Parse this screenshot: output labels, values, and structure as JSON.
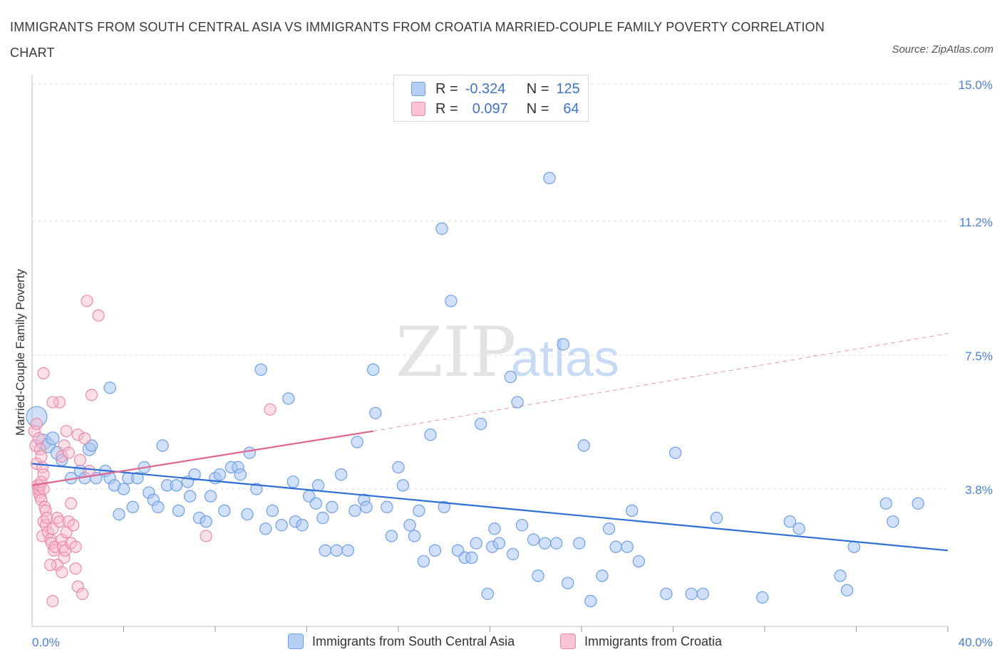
{
  "title": "IMMIGRANTS FROM SOUTH CENTRAL ASIA VS IMMIGRANTS FROM CROATIA MARRIED-COUPLE FAMILY POVERTY CORRELATION CHART",
  "source": "Source: ZipAtlas.com",
  "watermark": {
    "zip": "ZIP",
    "atlas": "atlas"
  },
  "legend": {
    "rows": [
      {
        "r_label": "R =",
        "r_value": "-0.324",
        "n_label": "N =",
        "n_value": "125"
      },
      {
        "r_label": "R =",
        "r_value": "0.097",
        "n_label": "N =",
        "n_value": "64"
      }
    ]
  },
  "colors": {
    "blue_fill": "#a9c6f3",
    "blue_stroke": "#6f9fe6",
    "blue_line": "#2e6fd6",
    "pink_fill": "#f7b8ca",
    "pink_stroke": "#eb8aa8",
    "pink_line": "#e0668f",
    "axis_text": "#4a7fd0",
    "grid": "#dcdcdc"
  },
  "chart_data": {
    "type": "scatter",
    "title": "IMMIGRANTS FROM SOUTH CENTRAL ASIA VS IMMIGRANTS FROM CROATIA MARRIED-COUPLE FAMILY POVERTY CORRELATION CHART",
    "xlabel": "",
    "ylabel": "Married-Couple Family Poverty",
    "xlim": [
      0,
      40
    ],
    "ylim": [
      0,
      15.0
    ],
    "x_tick_labels": [
      "0.0%",
      "40.0%"
    ],
    "y_ticks": [
      3.8,
      7.5,
      11.2,
      15.0
    ],
    "y_tick_labels": [
      "3.8%",
      "7.5%",
      "11.2%",
      "15.0%"
    ],
    "grid": true,
    "legend_position": "bottom",
    "series": [
      {
        "name": "Immigrants from South Central Asia",
        "color": "blue",
        "R": -0.324,
        "N": 125,
        "trend": {
          "x0": 0,
          "y0": 4.5,
          "x1": 40,
          "y1": 2.1,
          "extrapolated": false
        },
        "points": [
          [
            0.2,
            5.8,
            1.6
          ],
          [
            0.5,
            5.1,
            1.2
          ],
          [
            0.7,
            5.0,
            1.1
          ],
          [
            0.9,
            5.2,
            1.0
          ],
          [
            1.1,
            4.8,
            1.0
          ],
          [
            1.3,
            4.6,
            0.9
          ],
          [
            1.7,
            4.1,
            0.9
          ],
          [
            2.1,
            4.3,
            0.9
          ],
          [
            2.3,
            4.1,
            0.9
          ],
          [
            2.5,
            4.9,
            1.0
          ],
          [
            2.6,
            5.0,
            0.9
          ],
          [
            2.8,
            4.1,
            0.9
          ],
          [
            3.2,
            4.3,
            0.9
          ],
          [
            3.4,
            4.1,
            0.9
          ],
          [
            3.4,
            6.6,
            0.9
          ],
          [
            3.6,
            3.9,
            0.9
          ],
          [
            3.8,
            3.1,
            0.9
          ],
          [
            4.0,
            3.8,
            0.9
          ],
          [
            4.2,
            4.1,
            0.9
          ],
          [
            4.4,
            3.3,
            0.9
          ],
          [
            4.6,
            4.1,
            0.9
          ],
          [
            4.9,
            4.4,
            0.9
          ],
          [
            5.1,
            3.7,
            0.9
          ],
          [
            5.3,
            3.5,
            0.9
          ],
          [
            5.5,
            3.3,
            0.9
          ],
          [
            5.7,
            5.0,
            0.9
          ],
          [
            5.9,
            3.9,
            0.9
          ],
          [
            6.3,
            3.9,
            0.9
          ],
          [
            6.4,
            3.2,
            0.9
          ],
          [
            6.8,
            4.0,
            0.9
          ],
          [
            6.9,
            3.6,
            0.9
          ],
          [
            7.1,
            4.2,
            0.9
          ],
          [
            7.3,
            3.0,
            0.9
          ],
          [
            7.6,
            2.9,
            0.9
          ],
          [
            7.8,
            3.6,
            0.9
          ],
          [
            8.0,
            4.1,
            0.9
          ],
          [
            8.2,
            4.2,
            0.9
          ],
          [
            8.4,
            3.2,
            0.9
          ],
          [
            8.7,
            4.4,
            0.9
          ],
          [
            9.0,
            4.4,
            0.9
          ],
          [
            9.1,
            4.2,
            0.9
          ],
          [
            9.4,
            3.1,
            0.9
          ],
          [
            9.5,
            4.8,
            0.9
          ],
          [
            9.8,
            3.8,
            0.9
          ],
          [
            10.0,
            7.1,
            0.9
          ],
          [
            10.2,
            2.7,
            0.9
          ],
          [
            10.5,
            3.2,
            0.9
          ],
          [
            10.9,
            2.8,
            0.9
          ],
          [
            11.2,
            6.3,
            0.9
          ],
          [
            11.4,
            4.0,
            0.9
          ],
          [
            11.5,
            2.9,
            0.9
          ],
          [
            11.8,
            2.8,
            0.9
          ],
          [
            12.1,
            3.6,
            0.9
          ],
          [
            12.4,
            3.4,
            0.9
          ],
          [
            12.5,
            3.9,
            0.9
          ],
          [
            12.7,
            3.0,
            0.9
          ],
          [
            12.8,
            2.1,
            0.9
          ],
          [
            13.1,
            3.3,
            0.9
          ],
          [
            13.3,
            2.1,
            0.9
          ],
          [
            13.5,
            4.2,
            0.9
          ],
          [
            13.8,
            2.1,
            0.9
          ],
          [
            14.1,
            3.2,
            0.9
          ],
          [
            14.2,
            5.1,
            0.9
          ],
          [
            14.5,
            3.5,
            0.9
          ],
          [
            14.6,
            3.3,
            0.9
          ],
          [
            14.9,
            7.1,
            0.9
          ],
          [
            15.0,
            5.9,
            0.9
          ],
          [
            15.5,
            3.3,
            0.9
          ],
          [
            15.7,
            2.5,
            0.9
          ],
          [
            16.0,
            4.4,
            0.9
          ],
          [
            16.2,
            3.9,
            0.9
          ],
          [
            16.5,
            2.8,
            0.9
          ],
          [
            16.7,
            2.5,
            0.9
          ],
          [
            16.9,
            3.2,
            0.9
          ],
          [
            17.1,
            1.8,
            0.9
          ],
          [
            17.4,
            5.3,
            0.9
          ],
          [
            17.6,
            2.1,
            0.9
          ],
          [
            17.9,
            11.0,
            0.9
          ],
          [
            18.0,
            3.3,
            0.9
          ],
          [
            18.3,
            9.0,
            0.9
          ],
          [
            18.6,
            2.1,
            0.9
          ],
          [
            18.9,
            1.9,
            0.9
          ],
          [
            19.2,
            1.9,
            0.9
          ],
          [
            19.4,
            2.3,
            0.9
          ],
          [
            19.6,
            5.6,
            0.9
          ],
          [
            19.9,
            0.9,
            0.9
          ],
          [
            20.1,
            2.2,
            0.9
          ],
          [
            20.2,
            2.7,
            0.9
          ],
          [
            20.4,
            2.3,
            0.9
          ],
          [
            20.9,
            6.9,
            0.9
          ],
          [
            21.0,
            2.0,
            0.9
          ],
          [
            21.2,
            6.2,
            0.9
          ],
          [
            21.4,
            2.8,
            0.9
          ],
          [
            21.9,
            2.4,
            0.9
          ],
          [
            22.1,
            1.4,
            0.9
          ],
          [
            22.4,
            2.3,
            0.9
          ],
          [
            22.6,
            12.4,
            0.9
          ],
          [
            22.9,
            2.3,
            0.9
          ],
          [
            23.2,
            7.8,
            0.9
          ],
          [
            23.4,
            1.2,
            0.9
          ],
          [
            23.9,
            2.3,
            0.9
          ],
          [
            24.1,
            5.0,
            0.9
          ],
          [
            24.4,
            0.7,
            0.9
          ],
          [
            24.9,
            1.4,
            0.9
          ],
          [
            25.2,
            2.7,
            0.9
          ],
          [
            25.5,
            2.2,
            0.9
          ],
          [
            26.0,
            2.2,
            0.9
          ],
          [
            26.2,
            3.2,
            0.9
          ],
          [
            26.5,
            1.8,
            0.9
          ],
          [
            27.7,
            0.9,
            0.9
          ],
          [
            28.1,
            4.8,
            0.9
          ],
          [
            28.8,
            0.9,
            0.9
          ],
          [
            29.3,
            0.9,
            0.9
          ],
          [
            29.9,
            3.0,
            0.9
          ],
          [
            31.9,
            0.8,
            0.9
          ],
          [
            33.1,
            2.9,
            0.9
          ],
          [
            33.5,
            2.7,
            0.9
          ],
          [
            35.3,
            1.4,
            0.9
          ],
          [
            35.6,
            1.0,
            0.9
          ],
          [
            35.9,
            2.2,
            0.9
          ],
          [
            37.3,
            3.4,
            0.9
          ],
          [
            37.6,
            2.9,
            0.9
          ],
          [
            38.7,
            3.4,
            0.9
          ]
        ]
      },
      {
        "name": "Immigrants from Croatia",
        "color": "pink",
        "R": 0.097,
        "N": 64,
        "trend": {
          "x0": 0,
          "y0": 3.9,
          "x1": 14.9,
          "y1": 5.4,
          "extrapolated_to": [
            40,
            8.1
          ]
        },
        "points": [
          [
            0.1,
            5.4
          ],
          [
            0.15,
            5.0
          ],
          [
            0.2,
            4.5
          ],
          [
            0.25,
            3.9
          ],
          [
            0.3,
            3.7
          ],
          [
            0.35,
            3.6
          ],
          [
            0.4,
            3.5
          ],
          [
            0.2,
            5.6
          ],
          [
            0.3,
            5.2
          ],
          [
            0.35,
            4.9
          ],
          [
            0.4,
            4.7
          ],
          [
            0.45,
            4.4
          ],
          [
            0.5,
            4.2
          ],
          [
            0.3,
            3.8
          ],
          [
            0.35,
            3.9
          ],
          [
            0.4,
            4.0
          ],
          [
            0.5,
            3.8
          ],
          [
            0.55,
            3.3
          ],
          [
            0.6,
            3.2
          ],
          [
            0.5,
            2.9
          ],
          [
            0.45,
            2.5
          ],
          [
            0.6,
            2.8
          ],
          [
            0.65,
            3.0
          ],
          [
            0.7,
            2.6
          ],
          [
            0.8,
            2.4
          ],
          [
            0.85,
            2.3
          ],
          [
            0.9,
            2.7
          ],
          [
            0.95,
            2.1
          ],
          [
            1.0,
            2.2
          ],
          [
            1.1,
            3.0
          ],
          [
            1.2,
            2.9
          ],
          [
            1.3,
            2.4
          ],
          [
            1.35,
            2.2
          ],
          [
            1.4,
            1.9
          ],
          [
            1.45,
            2.1
          ],
          [
            1.5,
            2.6
          ],
          [
            1.6,
            2.9
          ],
          [
            1.7,
            2.3
          ],
          [
            1.8,
            2.8
          ],
          [
            1.9,
            2.2
          ],
          [
            1.7,
            3.4
          ],
          [
            1.3,
            4.7
          ],
          [
            1.4,
            5.0
          ],
          [
            1.5,
            5.4
          ],
          [
            1.6,
            4.8
          ],
          [
            1.2,
            6.2
          ],
          [
            0.9,
            6.2
          ],
          [
            0.5,
            7.0
          ],
          [
            2.0,
            5.3
          ],
          [
            2.1,
            4.6
          ],
          [
            2.3,
            5.2
          ],
          [
            2.5,
            4.3
          ],
          [
            2.6,
            6.4
          ],
          [
            1.1,
            1.7
          ],
          [
            1.3,
            1.5
          ],
          [
            0.8,
            1.7
          ],
          [
            1.9,
            1.6
          ],
          [
            2.0,
            1.1
          ],
          [
            2.2,
            0.9
          ],
          [
            0.9,
            0.7
          ],
          [
            2.4,
            9.0
          ],
          [
            2.9,
            8.6
          ],
          [
            10.4,
            6.0
          ],
          [
            7.6,
            2.5
          ]
        ]
      }
    ]
  },
  "bottom_legend": [
    "Immigrants from South Central Asia",
    "Immigrants from Croatia"
  ]
}
